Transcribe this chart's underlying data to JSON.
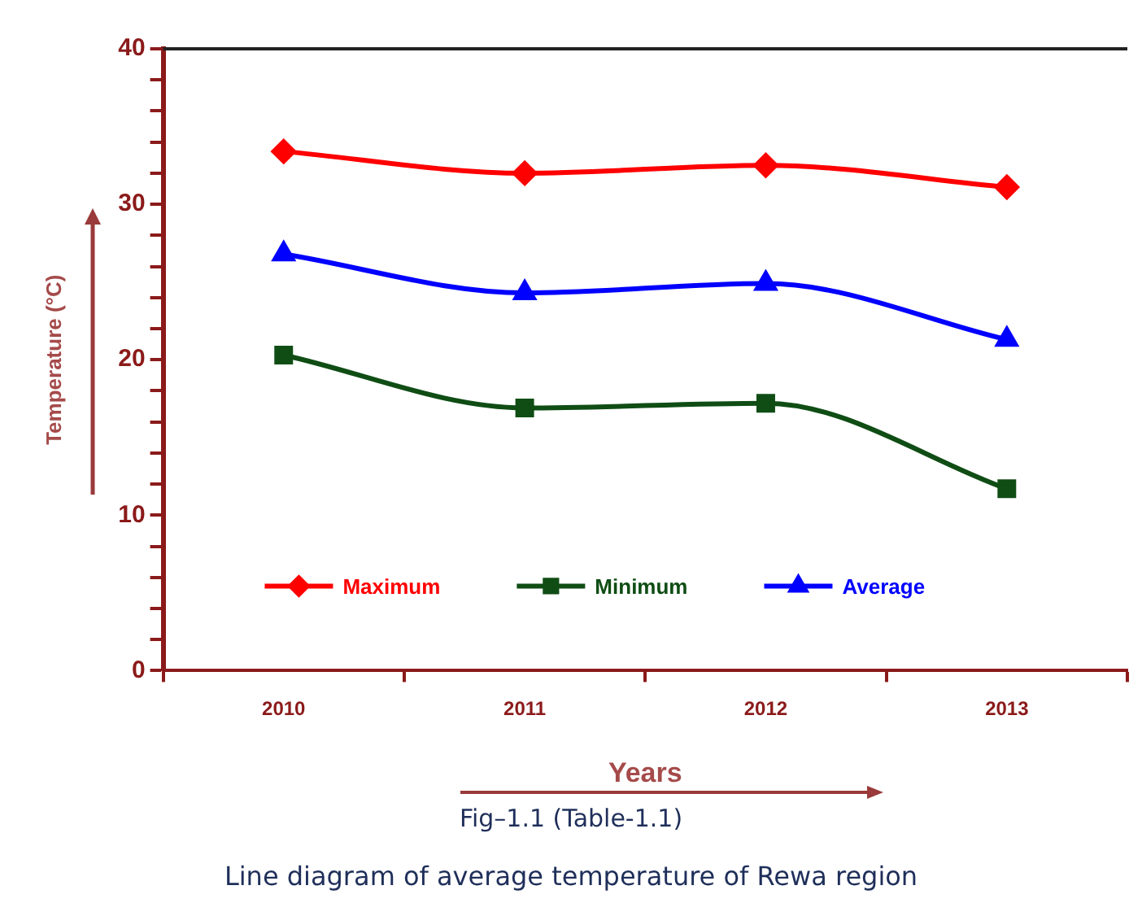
{
  "chart_data": {
    "type": "line",
    "categories": [
      "2010",
      "2011",
      "2012",
      "2013"
    ],
    "series": [
      {
        "name": "Maximum",
        "color": "#ff0000",
        "values": [
          33.4,
          32.0,
          32.5,
          31.1
        ],
        "marker": "diamond"
      },
      {
        "name": "Minimum",
        "color": "#0f4d14",
        "values": [
          20.3,
          16.9,
          17.2,
          11.7
        ],
        "marker": "square"
      },
      {
        "name": "Average",
        "color": "#0000ff",
        "values": [
          26.8,
          24.3,
          24.9,
          21.3
        ],
        "marker": "triangle"
      }
    ],
    "ylim": [
      0,
      40
    ],
    "yticks": [
      0,
      {
        "value": 2,
        "label": null
      },
      {
        "value": 4,
        "label": null
      },
      {
        "value": 6,
        "label": null
      },
      {
        "value": 8,
        "label": null
      },
      10,
      {
        "value": 12,
        "label": null
      },
      {
        "value": 14,
        "label": null
      },
      {
        "value": 16,
        "label": null
      },
      {
        "value": 18,
        "label": null
      },
      20,
      {
        "value": 22,
        "label": null
      },
      {
        "value": 24,
        "label": null
      },
      {
        "value": 26,
        "label": null
      },
      {
        "value": 28,
        "label": null
      },
      30,
      {
        "value": 32,
        "label": null
      },
      {
        "value": 34,
        "label": null
      },
      {
        "value": 36,
        "label": null
      },
      {
        "value": 38,
        "label": null
      },
      40
    ],
    "xlabel": "Years",
    "ylabel": "Temperature (°C)",
    "legend": "bottom",
    "grid": false,
    "line_style": "solid",
    "annotations": [
      "Fig–1.1 (Table-1.1)",
      "Line diagram of average temperature  of Rewa region"
    ]
  }
}
